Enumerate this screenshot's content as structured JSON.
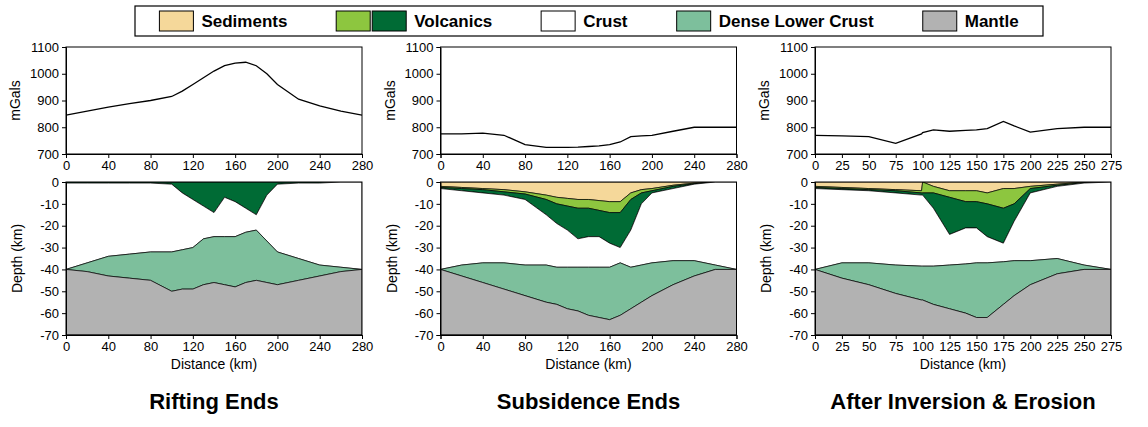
{
  "key": {
    "items": [
      {
        "name": "Sediments",
        "colors": [
          "#f5d89a"
        ]
      },
      {
        "name": "Volcanics",
        "colors": [
          "#8dc63f",
          "#006b35"
        ]
      },
      {
        "name": "Crust",
        "colors": [
          "#ffffff"
        ]
      },
      {
        "name": "Dense Lower Crust",
        "colors": [
          "#7dbf9c"
        ]
      },
      {
        "name": "Mantle",
        "colors": [
          "#b2b2b2"
        ]
      }
    ]
  },
  "chart_data": [
    {
      "type": "line",
      "ylabel": "mGals",
      "x": [
        0,
        20,
        40,
        60,
        80,
        100,
        110,
        120,
        130,
        140,
        150,
        160,
        170,
        180,
        190,
        200,
        220,
        240,
        260,
        280
      ],
      "xlim": [
        0,
        280
      ],
      "xticks": [
        0,
        40,
        80,
        120,
        160,
        200,
        240,
        280
      ],
      "ylim": [
        700,
        1100
      ],
      "yticks": [
        700,
        800,
        900,
        1000,
        1100
      ],
      "series": [
        {
          "color": "#000000",
          "values": [
            845,
            860,
            875,
            888,
            900,
            915,
            935,
            960,
            985,
            1010,
            1030,
            1040,
            1043,
            1030,
            1000,
            960,
            905,
            880,
            860,
            845
          ]
        }
      ]
    },
    {
      "type": "area",
      "title": "Rifting Ends",
      "xlabel": "Distance (km)",
      "ylabel": "Depth (km)",
      "x": [
        0,
        20,
        40,
        60,
        80,
        100,
        110,
        120,
        130,
        140,
        150,
        160,
        170,
        180,
        190,
        200,
        220,
        240,
        260,
        280
      ],
      "xlim": [
        0,
        280
      ],
      "xticks": [
        0,
        40,
        80,
        120,
        160,
        200,
        240,
        280
      ],
      "ylim": [
        -70,
        0
      ],
      "yticks": [
        -70,
        -60,
        -50,
        -40,
        -30,
        -20,
        -10,
        0
      ],
      "series": [
        {
          "color": "#006b35",
          "top": [
            0,
            0,
            0,
            0,
            0,
            0,
            0,
            0,
            0,
            0,
            0,
            0,
            0,
            0,
            0,
            0,
            0,
            0,
            0,
            0
          ],
          "bottom": [
            -0.5,
            -0.5,
            -0.5,
            -0.5,
            -0.5,
            -1,
            -5,
            -8,
            -11,
            -14,
            -7,
            -9,
            -12,
            -15,
            -6,
            -1,
            -0.5,
            -0.5,
            0,
            0
          ]
        },
        {
          "color": "#ffffff",
          "top": [
            -0.5,
            -0.5,
            -0.5,
            -0.5,
            -0.5,
            -1,
            -5,
            -8,
            -11,
            -14,
            -7,
            -9,
            -12,
            -15,
            -6,
            -1,
            -0.5,
            -0.5,
            0,
            0
          ],
          "bottom": [
            -40,
            -37,
            -34,
            -33,
            -32,
            -32,
            -31,
            -30,
            -26,
            -25,
            -25,
            -25,
            -23,
            -22,
            -27,
            -32,
            -35,
            -38,
            -39,
            -40
          ]
        },
        {
          "color": "#7dbf9c",
          "top": [
            -40,
            -37,
            -34,
            -33,
            -32,
            -32,
            -31,
            -30,
            -26,
            -25,
            -25,
            -25,
            -23,
            -22,
            -27,
            -32,
            -35,
            -38,
            -39,
            -40
          ],
          "bottom": [
            -40,
            -41,
            -43,
            -44,
            -45,
            -50,
            -49,
            -49,
            -47,
            -46,
            -47,
            -48,
            -46,
            -45,
            -46,
            -47,
            -45,
            -43,
            -41,
            -40
          ]
        },
        {
          "color": "#b2b2b2",
          "top": [
            -40,
            -41,
            -43,
            -44,
            -45,
            -50,
            -49,
            -49,
            -47,
            -46,
            -47,
            -48,
            -46,
            -45,
            -46,
            -47,
            -45,
            -43,
            -41,
            -40
          ],
          "bottom": [
            -70,
            -70,
            -70,
            -70,
            -70,
            -70,
            -70,
            -70,
            -70,
            -70,
            -70,
            -70,
            -70,
            -70,
            -70,
            -70,
            -70,
            -70,
            -70,
            -70
          ]
        }
      ]
    },
    {
      "type": "line",
      "ylabel": "mGals",
      "x": [
        0,
        20,
        40,
        60,
        80,
        100,
        110,
        120,
        130,
        140,
        150,
        160,
        170,
        180,
        190,
        200,
        220,
        240,
        260,
        280
      ],
      "xlim": [
        0,
        280
      ],
      "xticks": [
        0,
        40,
        80,
        120,
        160,
        200,
        240,
        280
      ],
      "ylim": [
        700,
        1100
      ],
      "yticks": [
        700,
        800,
        900,
        1000,
        1100
      ],
      "series": [
        {
          "color": "#000000",
          "values": [
            775,
            775,
            778,
            770,
            735,
            725,
            725,
            725,
            726,
            728,
            730,
            735,
            745,
            765,
            768,
            770,
            785,
            800,
            800,
            800
          ]
        }
      ]
    },
    {
      "type": "area",
      "title": "Subsidence Ends",
      "xlabel": "Distance (km)",
      "ylabel": "Depth (km)",
      "x": [
        0,
        20,
        40,
        60,
        80,
        100,
        110,
        120,
        130,
        140,
        150,
        160,
        170,
        180,
        190,
        200,
        220,
        240,
        260,
        280
      ],
      "xlim": [
        0,
        280
      ],
      "xticks": [
        0,
        40,
        80,
        120,
        160,
        200,
        240,
        280
      ],
      "ylim": [
        -70,
        0
      ],
      "yticks": [
        -70,
        -60,
        -50,
        -40,
        -30,
        -20,
        -10,
        0
      ],
      "series": [
        {
          "color": "#f5d89a",
          "top": [
            0,
            0,
            0,
            0,
            0,
            0,
            0,
            0,
            0,
            0,
            0,
            0,
            0,
            0,
            0,
            0,
            0,
            0,
            0,
            0
          ],
          "bottom": [
            -2,
            -2.5,
            -3,
            -3.5,
            -4.5,
            -6,
            -7,
            -7.5,
            -8,
            -8,
            -8.5,
            -9,
            -9,
            -5,
            -3.5,
            -3,
            -1.5,
            -0.5,
            0,
            0
          ]
        },
        {
          "color": "#8dc63f",
          "top": [
            -2,
            -2.5,
            -3,
            -3.5,
            -4.5,
            -6,
            -7,
            -7.5,
            -8,
            -8,
            -8.5,
            -9,
            -9,
            -5,
            -3.5,
            -3,
            -1.5,
            -0.5,
            0,
            0
          ],
          "bottom": [
            -2.5,
            -3,
            -3.5,
            -4.5,
            -5.5,
            -8,
            -10,
            -11,
            -12,
            -12,
            -13,
            -14,
            -14,
            -8,
            -5,
            -4,
            -2,
            -0.8,
            0,
            0
          ]
        },
        {
          "color": "#006b35",
          "top": [
            -2.5,
            -3,
            -3.5,
            -4.5,
            -5.5,
            -8,
            -10,
            -11,
            -12,
            -12,
            -13,
            -14,
            -14,
            -8,
            -5,
            -4,
            -2,
            -0.8,
            0,
            0
          ],
          "bottom": [
            -3,
            -4,
            -5,
            -6,
            -8,
            -15,
            -19,
            -22,
            -26,
            -25,
            -25,
            -28,
            -30,
            -22,
            -10,
            -5,
            -3,
            -1,
            0,
            0
          ]
        },
        {
          "color": "#ffffff",
          "top": [
            -3,
            -4,
            -5,
            -6,
            -8,
            -15,
            -19,
            -22,
            -26,
            -25,
            -25,
            -28,
            -30,
            -22,
            -10,
            -5,
            -3,
            -1,
            0,
            0
          ],
          "bottom": [
            -40,
            -38,
            -37,
            -37,
            -38,
            -38,
            -39,
            -39,
            -39,
            -39,
            -39,
            -39,
            -37,
            -39,
            -38,
            -37,
            -36,
            -36,
            -38,
            -40
          ]
        },
        {
          "color": "#7dbf9c",
          "top": [
            -40,
            -38,
            -37,
            -37,
            -38,
            -38,
            -39,
            -39,
            -39,
            -39,
            -39,
            -39,
            -37,
            -39,
            -38,
            -37,
            -36,
            -36,
            -38,
            -40
          ],
          "bottom": [
            -40,
            -43,
            -46,
            -49,
            -52,
            -55,
            -56,
            -58,
            -59,
            -61,
            -62,
            -63,
            -61,
            -58,
            -55,
            -52,
            -47,
            -43,
            -40,
            -40
          ]
        },
        {
          "color": "#b2b2b2",
          "top": [
            -40,
            -43,
            -46,
            -49,
            -52,
            -55,
            -56,
            -58,
            -59,
            -61,
            -62,
            -63,
            -61,
            -58,
            -55,
            -52,
            -47,
            -43,
            -40,
            -40
          ],
          "bottom": [
            -70,
            -70,
            -70,
            -70,
            -70,
            -70,
            -70,
            -70,
            -70,
            -70,
            -70,
            -70,
            -70,
            -70,
            -70,
            -70,
            -70,
            -70,
            -70,
            -70
          ]
        }
      ]
    },
    {
      "type": "line",
      "ylabel": "mGals",
      "x": [
        0,
        25,
        50,
        75,
        99,
        100,
        110,
        125,
        140,
        150,
        160,
        175,
        185,
        200,
        225,
        250,
        275
      ],
      "xlim": [
        0,
        275
      ],
      "xticks": [
        0,
        25,
        50,
        75,
        100,
        125,
        150,
        175,
        200,
        225,
        250,
        275
      ],
      "ylim": [
        700,
        1100
      ],
      "yticks": [
        700,
        800,
        900,
        1000,
        1100
      ],
      "series": [
        {
          "color": "#000000",
          "values": [
            770,
            768,
            765,
            740,
            775,
            780,
            790,
            785,
            788,
            790,
            795,
            822,
            805,
            782,
            795,
            800,
            800
          ]
        }
      ]
    },
    {
      "type": "area",
      "title": "After Inversion & Erosion",
      "xlabel": "Distance (km)",
      "ylabel": "Depth (km)",
      "x": [
        0,
        25,
        50,
        75,
        99,
        100,
        110,
        125,
        140,
        150,
        160,
        175,
        185,
        200,
        225,
        250,
        275
      ],
      "xlim": [
        0,
        275
      ],
      "xticks": [
        0,
        25,
        50,
        75,
        100,
        125,
        150,
        175,
        200,
        225,
        250,
        275
      ],
      "ylim": [
        -70,
        0
      ],
      "yticks": [
        -70,
        -60,
        -50,
        -40,
        -30,
        -20,
        -10,
        0
      ],
      "series": [
        {
          "color": "#f5d89a",
          "top": [
            0,
            0,
            0,
            0,
            0,
            0,
            0,
            0,
            0,
            0,
            0,
            0,
            0,
            0,
            0,
            0,
            0
          ],
          "bottom": [
            -2,
            -2.5,
            -3,
            -3.5,
            -4,
            0,
            -2,
            -4,
            -4,
            -4,
            -5,
            -3,
            -3,
            -2,
            -1,
            0,
            0
          ]
        },
        {
          "color": "#8dc63f",
          "top": [
            -2,
            -2.5,
            -3,
            -3.5,
            -4,
            0,
            -2,
            -4,
            -4,
            -4,
            -5,
            -3,
            -3,
            -2,
            -1,
            0,
            0
          ],
          "bottom": [
            -2.5,
            -3,
            -3.5,
            -4,
            -5,
            -5,
            -5,
            -7,
            -9,
            -9,
            -10,
            -12,
            -10,
            -3,
            -1.5,
            -0.3,
            0
          ]
        },
        {
          "color": "#006b35",
          "top": [
            -2.5,
            -3,
            -3.5,
            -4,
            -5,
            -5,
            -5,
            -7,
            -9,
            -9,
            -10,
            -12,
            -10,
            -3,
            -1.5,
            -0.3,
            0
          ],
          "bottom": [
            -3,
            -3.5,
            -4,
            -5,
            -6,
            -6,
            -12,
            -24,
            -21,
            -21,
            -25,
            -28,
            -18,
            -5,
            -2,
            -0.5,
            0
          ]
        },
        {
          "color": "#ffffff",
          "top": [
            -3,
            -3.5,
            -4,
            -5,
            -6,
            -6,
            -12,
            -24,
            -21,
            -21,
            -25,
            -28,
            -18,
            -5,
            -2,
            -0.5,
            0
          ],
          "bottom": [
            -40,
            -37,
            -37,
            -38,
            -38.5,
            -38.5,
            -38.5,
            -38,
            -37.5,
            -37,
            -37,
            -36.5,
            -36,
            -36,
            -35,
            -38,
            -40
          ]
        },
        {
          "color": "#7dbf9c",
          "top": [
            -40,
            -37,
            -37,
            -38,
            -38.5,
            -38.5,
            -38.5,
            -38,
            -37.5,
            -37,
            -37,
            -36.5,
            -36,
            -36,
            -35,
            -38,
            -40
          ],
          "bottom": [
            -40,
            -44,
            -47,
            -51,
            -54,
            -54,
            -56,
            -58,
            -60,
            -62,
            -62,
            -56,
            -52,
            -47,
            -42,
            -40,
            -40
          ]
        },
        {
          "color": "#b2b2b2",
          "top": [
            -40,
            -44,
            -47,
            -51,
            -54,
            -54,
            -56,
            -58,
            -60,
            -62,
            -62,
            -56,
            -52,
            -47,
            -42,
            -40,
            -40
          ],
          "bottom": [
            -70,
            -70,
            -70,
            -70,
            -70,
            -70,
            -70,
            -70,
            -70,
            -70,
            -70,
            -70,
            -70,
            -70,
            -70,
            -70,
            -70
          ]
        }
      ]
    }
  ]
}
